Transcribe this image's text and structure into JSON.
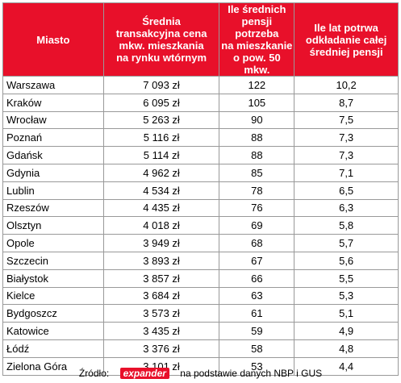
{
  "table": {
    "header": [
      [
        "Miasto"
      ],
      [
        "Średnia",
        "transakcyjna cena",
        "mkw. mieszkania",
        "na rynku wtórnym"
      ],
      [
        "Ile średnich",
        "pensji potrzeba",
        "na mieszkanie",
        "o pow. 50 mkw."
      ],
      [
        "Ile lat potrwa",
        "odkładanie całej",
        "średniej pensji"
      ]
    ],
    "rows": [
      [
        "Warszawa",
        "7 093 zł",
        "122",
        "10,2"
      ],
      [
        "Kraków",
        "6 095 zł",
        "105",
        "8,7"
      ],
      [
        "Wrocław",
        "5 263 zł",
        "90",
        "7,5"
      ],
      [
        "Poznań",
        "5 116 zł",
        "88",
        "7,3"
      ],
      [
        "Gdańsk",
        "5 114 zł",
        "88",
        "7,3"
      ],
      [
        "Gdynia",
        "4 962 zł",
        "85",
        "7,1"
      ],
      [
        "Lublin",
        "4 534 zł",
        "78",
        "6,5"
      ],
      [
        "Rzeszów",
        "4 435 zł",
        "76",
        "6,3"
      ],
      [
        "Olsztyn",
        "4 018 zł",
        "69",
        "5,8"
      ],
      [
        "Opole",
        "3 949 zł",
        "68",
        "5,7"
      ],
      [
        "Szczecin",
        "3 893 zł",
        "67",
        "5,6"
      ],
      [
        "Białystok",
        "3 857 zł",
        "66",
        "5,5"
      ],
      [
        "Kielce",
        "3 684 zł",
        "63",
        "5,3"
      ],
      [
        "Bydgoszcz",
        "3 573 zł",
        "61",
        "5,1"
      ],
      [
        "Katowice",
        "3 435 zł",
        "59",
        "4,9"
      ],
      [
        "Łódź",
        "3 376 zł",
        "58",
        "4,8"
      ],
      [
        "Zielona Góra",
        "3 101 zł",
        "53",
        "4,4"
      ]
    ]
  },
  "source": {
    "label": "Źródło:",
    "logo": "expander",
    "text": "na podstawie danych NBP i GUS"
  }
}
